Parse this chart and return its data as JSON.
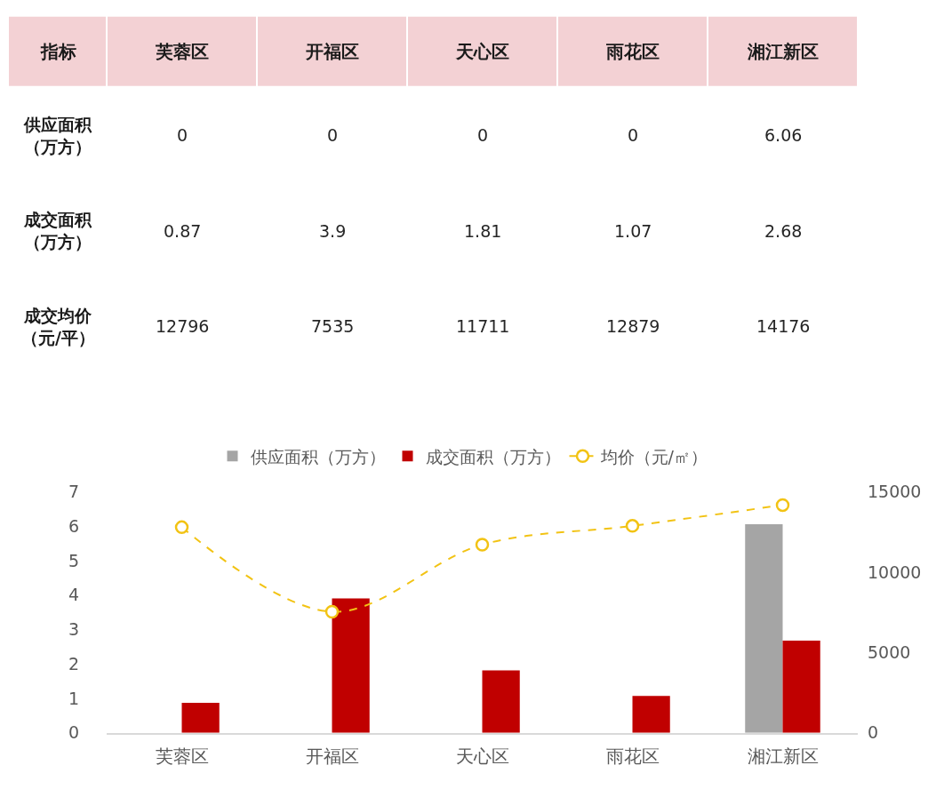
{
  "chart_data": {
    "type": "bar",
    "categories": [
      "芙蓉区",
      "开福区",
      "天心区",
      "雨花区",
      "湘江新区"
    ],
    "series": [
      {
        "name": "供应面积（万方）",
        "color": "#a5a5a5",
        "values": [
          0,
          0,
          0,
          0,
          6.06
        ]
      },
      {
        "name": "成交面积（万方）",
        "color": "#c00000",
        "values": [
          0.87,
          3.9,
          1.81,
          1.07,
          2.68
        ]
      },
      {
        "name": "均价（元/㎡）",
        "type": "line",
        "axis": "y2",
        "color": "#f2c314",
        "values": [
          12796,
          7535,
          11711,
          12879,
          14176
        ]
      }
    ],
    "ylim": [
      0,
      7
    ],
    "yticks": [
      0,
      1,
      2,
      3,
      4,
      5,
      6,
      7
    ],
    "y2lim": [
      0,
      15000
    ],
    "y2ticks": [
      0,
      5000,
      10000,
      15000
    ],
    "marker": "circle",
    "line_style": "dashed",
    "grid": false,
    "legend": "top",
    "data_labels": true,
    "annotations": [
      "指标",
      "供应面积（万方）",
      "成交面积（万方）",
      "成交均价（元/平）"
    ]
  }
}
